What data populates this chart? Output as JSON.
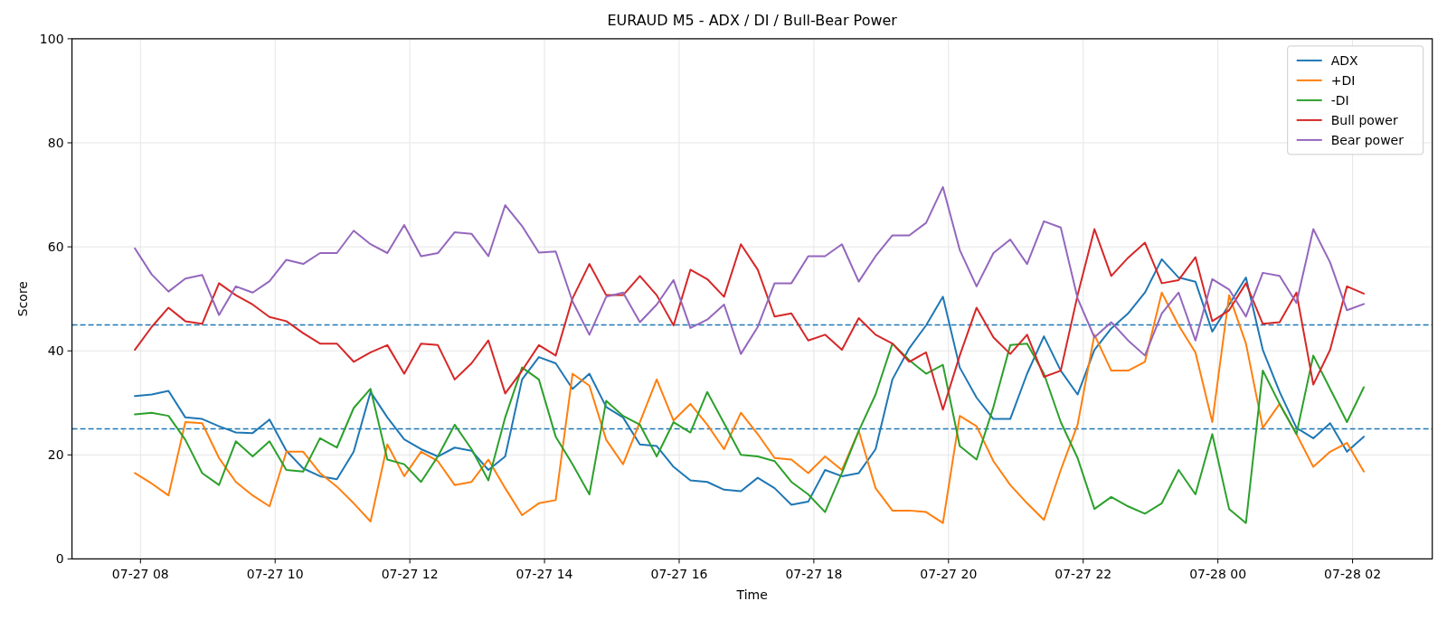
{
  "chart_data": {
    "type": "line",
    "title": "EURAUD M5 - ADX / DI / Bull-Bear Power",
    "xlabel": "Time",
    "ylabel": "Score",
    "x": [
      "--07-27T07:55",
      "--07-27T08:10",
      "--07-27T08:25",
      "--07-27T08:40",
      "--07-27T08:55",
      "--07-27T09:10",
      "--07-27T09:25",
      "--07-27T09:40",
      "--07-27T09:55",
      "--07-27T10:10",
      "--07-27T10:25",
      "--07-27T10:40",
      "--07-27T10:55",
      "--07-27T11:10",
      "--07-27T11:25",
      "--07-27T11:40",
      "--07-27T11:55",
      "--07-27T12:10",
      "--07-27T12:25",
      "--07-27T12:40",
      "--07-27T12:55",
      "--07-27T13:10",
      "--07-27T13:25",
      "--07-27T13:40",
      "--07-27T13:55",
      "--07-27T14:10",
      "--07-27T14:25",
      "--07-27T14:40",
      "--07-27T14:55",
      "--07-27T15:10",
      "--07-27T15:25",
      "--07-27T15:40",
      "--07-27T15:55",
      "--07-27T16:10",
      "--07-27T16:25",
      "--07-27T16:40",
      "--07-27T16:55",
      "--07-27T17:10",
      "--07-27T17:25",
      "--07-27T17:40",
      "--07-27T17:55",
      "--07-27T18:10",
      "--07-27T18:25",
      "--07-27T18:40",
      "--07-27T18:55",
      "--07-27T19:10",
      "--07-27T19:25",
      "--07-27T19:40",
      "--07-27T19:55",
      "--07-27T20:10",
      "--07-27T20:25",
      "--07-27T20:40",
      "--07-27T20:55",
      "--07-27T21:10",
      "--07-27T21:25",
      "--07-27T21:40",
      "--07-27T21:55",
      "--07-27T22:10",
      "--07-27T22:25",
      "--07-27T22:40",
      "--07-27T22:55",
      "--07-27T23:10",
      "--07-27T23:25",
      "--07-27T23:40",
      "--07-27T23:55",
      "--07-28T00:10",
      "--07-28T00:25",
      "--07-28T00:40",
      "--07-28T00:55",
      "--07-28T01:10",
      "--07-28T01:25",
      "--07-28T01:40",
      "--07-28T01:55",
      "--07-28T02:10"
    ],
    "series": [
      {
        "name": "ADX",
        "color": "#1f77b4",
        "values": [
          31.3,
          31.6,
          32.3,
          27.2,
          26.9,
          25.5,
          24.3,
          24.2,
          26.8,
          20.8,
          17.4,
          15.9,
          15.3,
          20.6,
          32.1,
          27.2,
          23.0,
          21.1,
          19.7,
          21.4,
          20.8,
          17.1,
          19.7,
          34.5,
          38.8,
          37.6,
          32.7,
          35.6,
          29.2,
          27.2,
          22.0,
          21.7,
          17.7,
          15.1,
          14.8,
          13.3,
          13.0,
          15.6,
          13.6,
          10.4,
          11.0,
          17.1,
          15.9,
          16.5,
          21.1,
          34.5,
          40.5,
          44.9,
          50.4,
          36.8,
          31.0,
          26.9,
          26.9,
          35.6,
          42.8,
          36.2,
          31.6,
          40.2,
          44.3,
          47.2,
          51.2,
          57.6,
          54.1,
          53.3,
          43.7,
          48.9,
          54.1,
          40.2,
          32.1,
          25.2,
          23.2,
          26.1,
          20.6,
          23.5
        ]
      },
      {
        "name": "+DI",
        "color": "#ff7f0e",
        "values": [
          16.5,
          14.5,
          12.2,
          26.3,
          26.1,
          19.4,
          14.8,
          12.2,
          10.1,
          20.6,
          20.6,
          16.5,
          13.9,
          10.7,
          7.2,
          22.0,
          15.9,
          20.6,
          18.8,
          14.2,
          14.8,
          19.1,
          13.6,
          8.4,
          10.7,
          11.3,
          35.6,
          33.3,
          22.9,
          18.2,
          26.3,
          34.5,
          26.6,
          29.8,
          25.8,
          21.1,
          28.1,
          24.0,
          19.4,
          19.1,
          16.5,
          19.7,
          17.1,
          24.6,
          13.6,
          9.3,
          9.3,
          9.0,
          6.9,
          27.5,
          25.5,
          18.8,
          14.2,
          10.7,
          7.5,
          17.1,
          25.8,
          43.1,
          36.2,
          36.2,
          37.9,
          51.2,
          44.9,
          39.7,
          26.3,
          50.7,
          41.4,
          25.2,
          29.8,
          24.0,
          17.7,
          20.6,
          22.3,
          16.8
        ]
      },
      {
        "name": "-DI",
        "color": "#2ca02c",
        "values": [
          27.8,
          28.1,
          27.5,
          22.9,
          16.5,
          14.2,
          22.6,
          19.7,
          22.6,
          17.1,
          16.8,
          23.2,
          21.4,
          29.0,
          32.7,
          19.1,
          18.2,
          14.8,
          19.7,
          25.8,
          21.1,
          15.1,
          27.2,
          36.8,
          34.5,
          23.5,
          18.2,
          12.4,
          30.4,
          27.5,
          25.8,
          19.7,
          26.3,
          24.3,
          32.1,
          26.1,
          20.0,
          19.7,
          18.8,
          14.8,
          12.4,
          9.0,
          16.5,
          24.6,
          31.6,
          41.4,
          38.2,
          35.6,
          37.3,
          21.7,
          19.1,
          29.2,
          41.1,
          41.4,
          35.6,
          26.3,
          19.4,
          9.6,
          11.9,
          10.1,
          8.7,
          10.7,
          17.1,
          12.4,
          24.0,
          9.6,
          6.9,
          36.2,
          29.8,
          24.0,
          39.1,
          32.7,
          26.3,
          33.0
        ]
      },
      {
        "name": "Bull power",
        "color": "#d62728",
        "values": [
          40.2,
          44.6,
          48.3,
          45.7,
          45.2,
          53.0,
          50.7,
          48.9,
          46.5,
          45.7,
          43.4,
          41.4,
          41.4,
          37.9,
          39.7,
          41.1,
          35.6,
          41.4,
          41.1,
          34.5,
          37.6,
          42.0,
          31.8,
          36.2,
          41.1,
          39.1,
          50.1,
          56.7,
          50.7,
          50.7,
          54.4,
          50.7,
          44.9,
          55.6,
          53.8,
          50.4,
          60.5,
          55.6,
          46.6,
          47.2,
          42.0,
          43.1,
          40.2,
          46.3,
          43.1,
          41.4,
          37.9,
          39.7,
          28.7,
          39.1,
          48.3,
          42.6,
          39.4,
          43.1,
          35.0,
          36.2,
          50.7,
          63.4,
          54.4,
          57.9,
          60.8,
          53.0,
          53.6,
          58.0,
          45.7,
          47.8,
          53.0,
          45.2,
          45.5,
          51.2,
          33.5,
          40.2,
          52.4,
          51.0
        ]
      },
      {
        "name": "Bear power",
        "color": "#9467bd",
        "values": [
          59.7,
          54.7,
          51.4,
          53.9,
          54.6,
          46.9,
          52.4,
          51.2,
          53.4,
          57.5,
          56.7,
          58.8,
          58.8,
          63.1,
          60.5,
          58.8,
          64.2,
          58.2,
          58.8,
          62.8,
          62.5,
          58.2,
          68.0,
          64.0,
          58.9,
          59.1,
          49.5,
          43.1,
          50.4,
          51.2,
          45.5,
          48.9,
          53.6,
          44.4,
          46.0,
          48.9,
          39.4,
          44.6,
          53.0,
          53.0,
          58.2,
          58.2,
          60.5,
          53.3,
          58.2,
          62.2,
          62.2,
          64.6,
          71.5,
          59.4,
          52.4,
          58.8,
          61.4,
          56.7,
          64.9,
          63.7,
          50.1,
          42.6,
          45.5,
          42.0,
          39.1,
          47.2,
          51.2,
          42.0,
          53.8,
          51.8,
          46.6,
          55.0,
          54.4,
          49.2,
          63.4,
          57.0,
          47.8,
          49.0
        ]
      }
    ],
    "xlim": [
      "--07-27T06:59",
      "--07-28T03:11"
    ],
    "xticks": [
      {
        "value": "--07-27T08:00",
        "label": "07-27 08"
      },
      {
        "value": "--07-27T10:00",
        "label": "07-27 10"
      },
      {
        "value": "--07-27T12:00",
        "label": "07-27 12"
      },
      {
        "value": "--07-27T14:00",
        "label": "07-27 14"
      },
      {
        "value": "--07-27T16:00",
        "label": "07-27 16"
      },
      {
        "value": "--07-27T18:00",
        "label": "07-27 18"
      },
      {
        "value": "--07-27T20:00",
        "label": "07-27 20"
      },
      {
        "value": "--07-27T22:00",
        "label": "07-27 22"
      },
      {
        "value": "--07-28T00:00",
        "label": "07-28 00"
      },
      {
        "value": "--07-28T02:00",
        "label": "07-28 02"
      }
    ],
    "ylim": [
      0,
      100
    ],
    "yticks": [
      0,
      20,
      40,
      60,
      80,
      100
    ],
    "ref_lines": [
      {
        "axis": "y",
        "value": 45,
        "color": "#1f77b4",
        "line_style": "dashed"
      },
      {
        "axis": "y",
        "value": 25,
        "color": "#1f77b4",
        "line_style": "dashed"
      }
    ],
    "grid": true,
    "legend": "top right",
    "line_style": "solid",
    "marker": "none"
  }
}
